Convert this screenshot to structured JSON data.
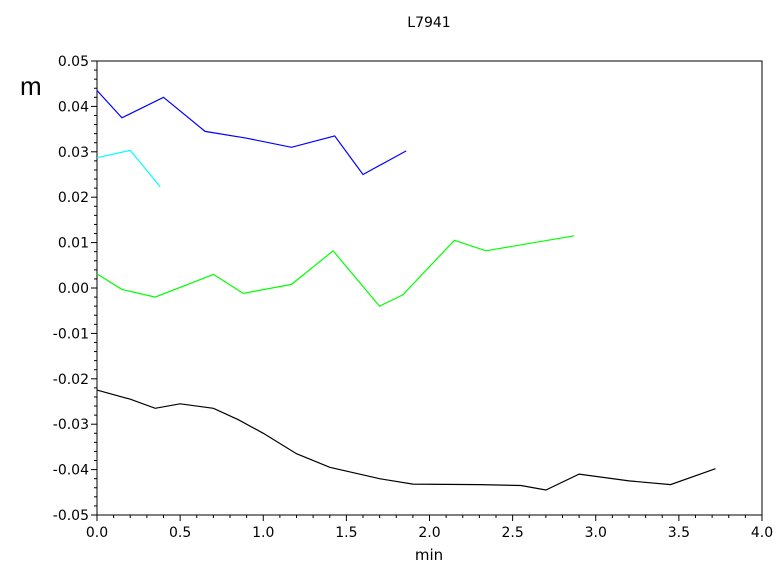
{
  "chart_data": {
    "type": "line",
    "title": "L7941",
    "xlabel": "min",
    "ylabel": "m",
    "xlim": [
      0,
      4.0
    ],
    "ylim": [
      -0.05,
      0.05
    ],
    "x_ticks": [
      "0.0",
      "0.5",
      "1.0",
      "1.5",
      "2.0",
      "2.5",
      "3.0",
      "3.5",
      "4.0"
    ],
    "y_ticks": [
      "0.05",
      "0.04",
      "0.03",
      "0.02",
      "0.01",
      "0.00",
      "-0.01",
      "-0.02",
      "-0.03",
      "-0.04",
      "-0.05"
    ],
    "grid": false,
    "series": [
      {
        "color": "#0000ff",
        "points": [
          [
            0.0,
            0.0435
          ],
          [
            0.15,
            0.0375
          ],
          [
            0.4,
            0.042
          ],
          [
            0.65,
            0.0345
          ],
          [
            0.9,
            0.033
          ],
          [
            1.17,
            0.031
          ],
          [
            1.43,
            0.0335
          ],
          [
            1.6,
            0.025
          ],
          [
            1.86,
            0.0302
          ]
        ]
      },
      {
        "color": "#00ffff",
        "points": [
          [
            0.0,
            0.0287
          ],
          [
            0.2,
            0.0303
          ],
          [
            0.38,
            0.0223
          ]
        ]
      },
      {
        "color": "#00ff00",
        "points": [
          [
            0.0,
            0.0031
          ],
          [
            0.15,
            -0.0003
          ],
          [
            0.35,
            -0.002
          ],
          [
            0.7,
            0.003
          ],
          [
            0.88,
            -0.0012
          ],
          [
            1.17,
            0.0008
          ],
          [
            1.42,
            0.0082
          ],
          [
            1.7,
            -0.004
          ],
          [
            1.84,
            -0.0015
          ],
          [
            2.15,
            0.0105
          ],
          [
            2.34,
            0.0082
          ],
          [
            2.87,
            0.0115
          ]
        ]
      },
      {
        "color": "#000000",
        "points": [
          [
            0.0,
            -0.0225
          ],
          [
            0.2,
            -0.0245
          ],
          [
            0.35,
            -0.0265
          ],
          [
            0.5,
            -0.0255
          ],
          [
            0.7,
            -0.0265
          ],
          [
            0.85,
            -0.029
          ],
          [
            1.0,
            -0.032
          ],
          [
            1.2,
            -0.0365
          ],
          [
            1.4,
            -0.0395
          ],
          [
            1.7,
            -0.042
          ],
          [
            1.9,
            -0.0432
          ],
          [
            2.3,
            -0.0433
          ],
          [
            2.55,
            -0.0435
          ],
          [
            2.7,
            -0.0445
          ],
          [
            2.9,
            -0.041
          ],
          [
            3.2,
            -0.0425
          ],
          [
            3.45,
            -0.0433
          ],
          [
            3.72,
            -0.0398
          ]
        ]
      }
    ]
  }
}
